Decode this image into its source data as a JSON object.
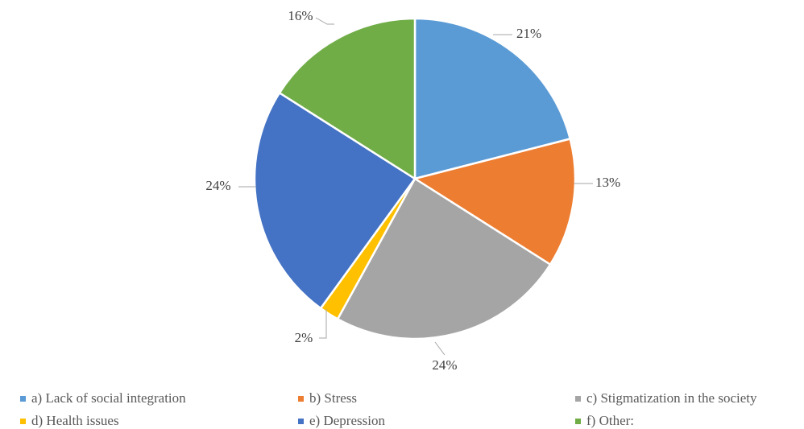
{
  "chart_data": {
    "type": "pie",
    "title": "",
    "start_angle_deg": 0,
    "direction": "clockwise",
    "slices": [
      {
        "label": "a) Lack of social integration",
        "value": 21,
        "data_label": "21%",
        "color": "#5B9BD5"
      },
      {
        "label": "b) Stress",
        "value": 13,
        "data_label": "13%",
        "color": "#ED7D31"
      },
      {
        "label": "c) Stigmatization in the society",
        "value": 24,
        "data_label": "24%",
        "color": "#A5A5A5"
      },
      {
        "label": "d) Health issues",
        "value": 2,
        "data_label": "2%",
        "color": "#FFC000"
      },
      {
        "label": "e) Depression",
        "value": 24,
        "data_label": "24%",
        "color": "#4472C4"
      },
      {
        "label": "f) Other:",
        "value": 16,
        "data_label": "16%",
        "color": "#70AD47"
      }
    ],
    "legend_position": "bottom"
  }
}
